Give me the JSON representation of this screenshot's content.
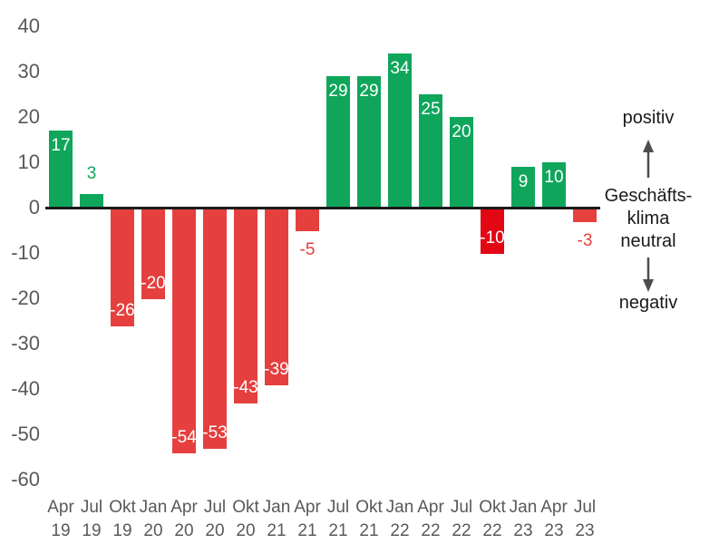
{
  "chart_data": {
    "type": "bar",
    "title": "",
    "xlabel": "",
    "ylabel": "",
    "categories": [
      "Apr 19",
      "Jul 19",
      "Okt 19",
      "Jan 20",
      "Apr 20",
      "Jul 20",
      "Okt 20",
      "Jan 21",
      "Apr 21",
      "Jul 21",
      "Okt 21",
      "Jan 22",
      "Apr 22",
      "Jul 22",
      "Okt 22",
      "Jan 23",
      "Apr 23",
      "Jul 23"
    ],
    "values": [
      17,
      3,
      -26,
      -20,
      -54,
      -53,
      -43,
      -39,
      -5,
      29,
      29,
      34,
      25,
      20,
      -10,
      9,
      10,
      -3
    ],
    "ylim": [
      -60,
      40
    ],
    "yticks": [
      40,
      30,
      20,
      10,
      0,
      -10,
      -20,
      -30,
      -40,
      -50,
      -60
    ],
    "grid": false,
    "legend_position": "none",
    "bar_colors": {
      "positive": "#0FA65C",
      "negative": "#E5403E",
      "negative_emphasis": "#E30613",
      "emphasis_index": 14
    },
    "value_label_colors": {
      "inside": "#FFFFFF",
      "outside_positive": "#0FA65C",
      "outside_negative": "#E5403E"
    },
    "axis_color": "#1A1A1A",
    "tick_color": "#595959"
  },
  "annotation": {
    "positiv": "positiv",
    "klima_lines": [
      "Geschäfts-",
      "klima",
      "neutral"
    ],
    "negativ": "negativ",
    "arrow_color": "#4D4D4D"
  }
}
